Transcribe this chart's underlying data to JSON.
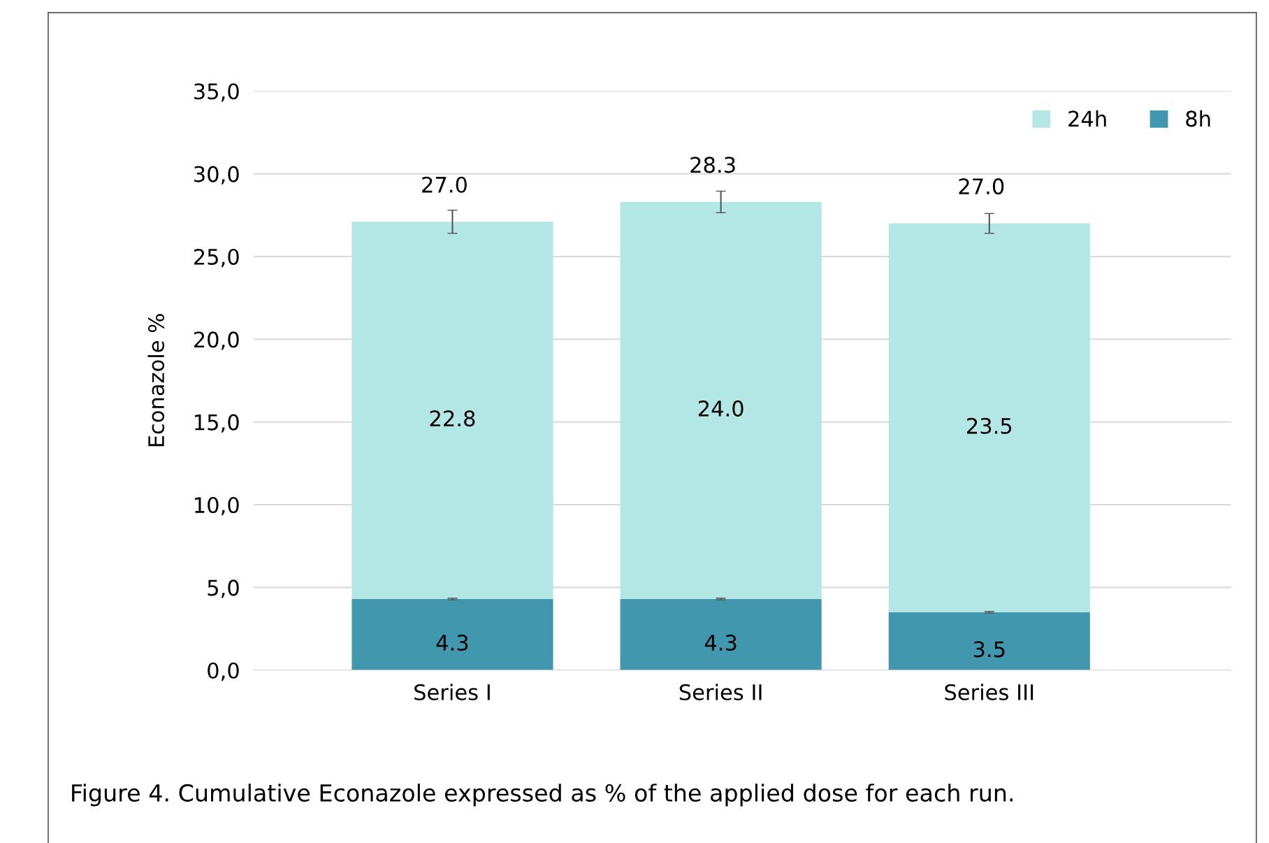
{
  "chart_data": {
    "type": "bar",
    "stacked": true,
    "ylabel": "Econazole %",
    "categories": [
      "Series I",
      "Series II",
      "Series III"
    ],
    "series": [
      {
        "name": "8h",
        "color": "#4198ae",
        "values": [
          4.3,
          4.3,
          3.5
        ],
        "value_labels": [
          "4.3",
          "4.3",
          "3.5"
        ],
        "errors": [
          0.05,
          0.05,
          0.05
        ]
      },
      {
        "name": "24h",
        "color": "#b3e7e5",
        "values": [
          22.8,
          24.0,
          23.5
        ],
        "value_labels": [
          "22.8",
          "24.0",
          "23.5"
        ],
        "errors": [
          0.7,
          0.65,
          0.6
        ]
      }
    ],
    "totals": [
      "27.0",
      "28.3",
      "27.0"
    ],
    "ylim": [
      0,
      35
    ],
    "yticks": [
      {
        "value": 0,
        "label": "0,0"
      },
      {
        "value": 5,
        "label": "5,0"
      },
      {
        "value": 10,
        "label": "10,0"
      },
      {
        "value": 15,
        "label": "15,0"
      },
      {
        "value": 20,
        "label": "20,0"
      },
      {
        "value": 25,
        "label": "25,0"
      },
      {
        "value": 30,
        "label": "30,0"
      },
      {
        "value": 35,
        "label": "35,0"
      }
    ],
    "grid": "y",
    "legend": "top right",
    "annotations": [
      "Figure 4. Cumulative Econazole expressed as % of the applied dose for each run."
    ]
  }
}
